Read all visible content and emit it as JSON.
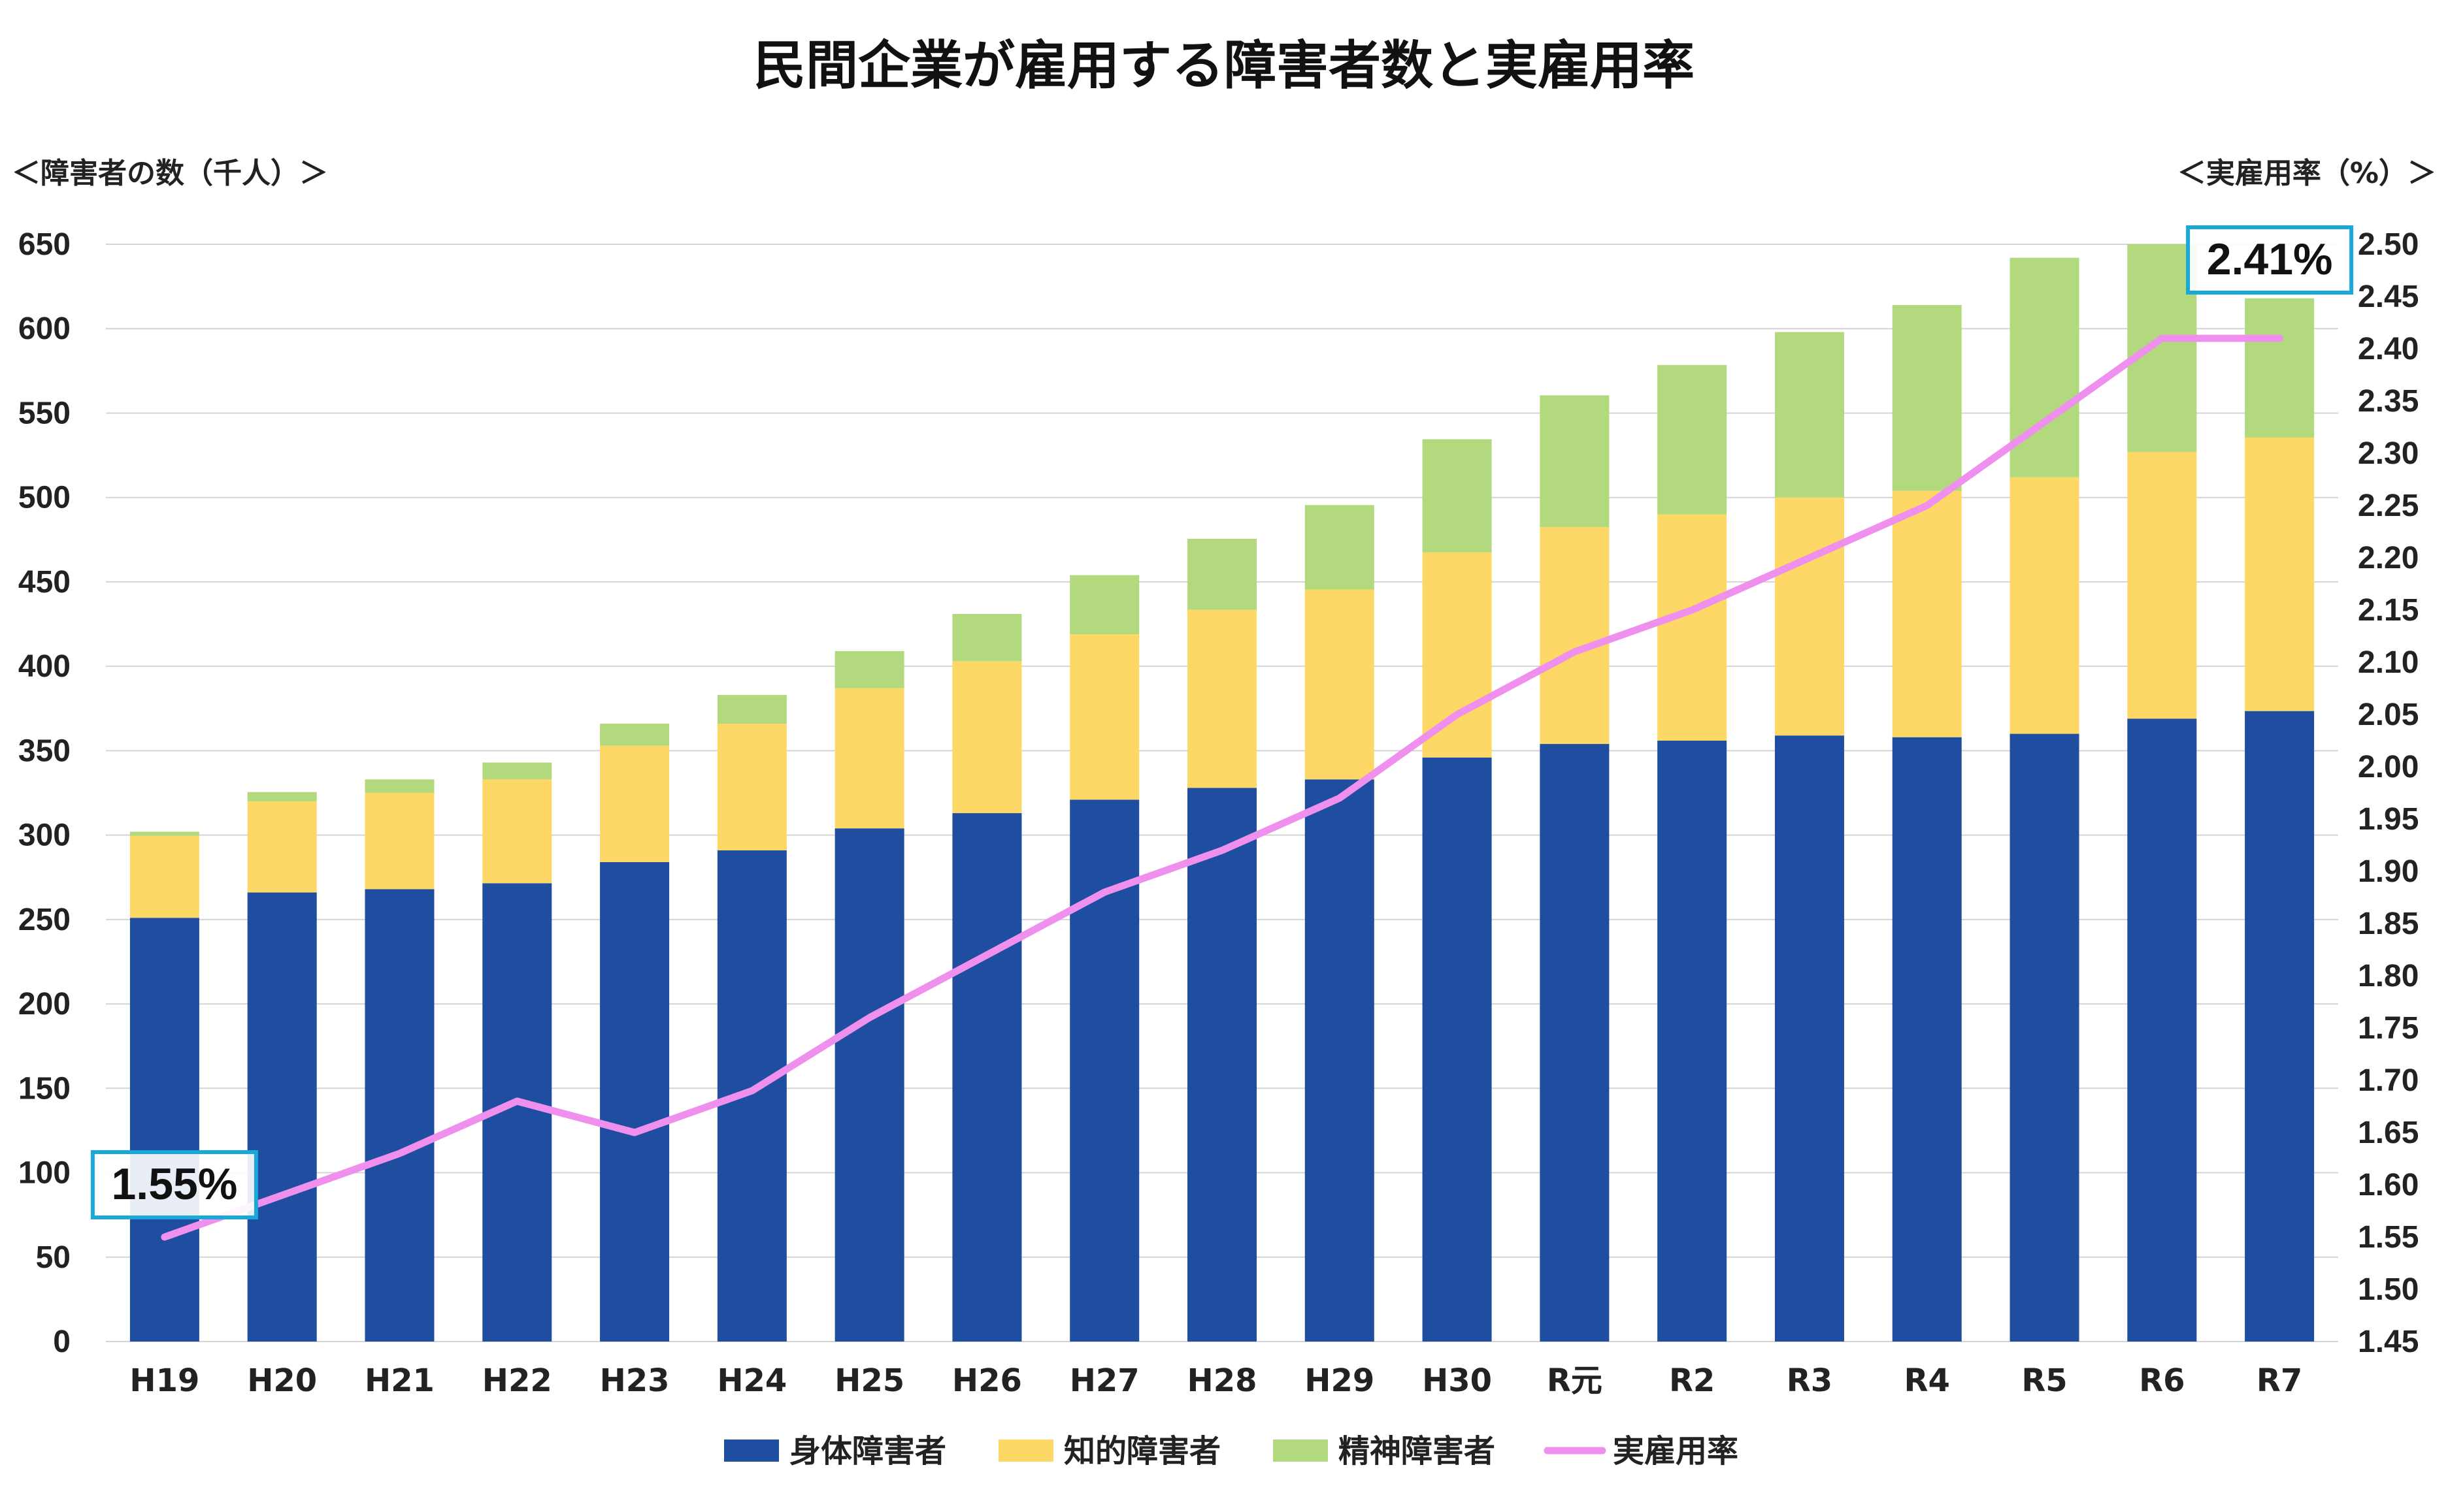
{
  "chart_data": {
    "type": "bar",
    "stacked": true,
    "title": "民間企業が雇用する障害者数と実雇用率",
    "y_left_label": "＜障害者の数（千人）＞",
    "y_right_label": "＜実雇用率（%）＞",
    "categories": [
      "H19",
      "H20",
      "H21",
      "H22",
      "H23",
      "H24",
      "H25",
      "H26",
      "H27",
      "H28",
      "H29",
      "H30",
      "R元",
      "R2",
      "R3",
      "R4",
      "R5",
      "R6",
      "R7"
    ],
    "series": [
      {
        "name": "身体障害者",
        "kind": "bar",
        "color": "#1f4ea1",
        "values": [
          251.0,
          266.0,
          268.0,
          271.5,
          284.0,
          291.0,
          304.0,
          313.0,
          321.0,
          328.0,
          333.0,
          346.0,
          354.0,
          356.0,
          359.0,
          358.0,
          360.0,
          369.0,
          373.5
        ]
      },
      {
        "name": "知的障害者",
        "kind": "bar",
        "color": "#fdd866",
        "values": [
          48.5,
          54.0,
          57.0,
          61.5,
          69.0,
          75.0,
          83.0,
          90.0,
          98.0,
          105.5,
          112.5,
          121.5,
          128.5,
          134.0,
          141.0,
          146.0,
          152.0,
          158.0,
          162.0
        ]
      },
      {
        "name": "精神障害者",
        "kind": "bar",
        "color": "#b2d97e",
        "values": [
          2.5,
          5.5,
          8.0,
          10.0,
          13.0,
          17.0,
          22.0,
          28.0,
          35.0,
          42.0,
          50.0,
          67.0,
          78.0,
          88.5,
          98.0,
          110.0,
          130.0,
          123.0,
          82.5
        ]
      },
      {
        "name": "実雇用率",
        "kind": "line",
        "axis": "right",
        "color": "#f090ee",
        "values": [
          1.55,
          1.59,
          1.63,
          1.68,
          1.65,
          1.69,
          1.76,
          1.82,
          1.88,
          1.92,
          1.97,
          2.05,
          2.11,
          2.15,
          2.2,
          2.25,
          2.33,
          2.41,
          2.41
        ]
      }
    ],
    "y_left": {
      "min": 0,
      "max": 650,
      "step": 50
    },
    "y_right": {
      "min": 1.45,
      "max": 2.5,
      "step": 0.05
    },
    "grid": true,
    "legend_position": "bottom",
    "callouts": [
      {
        "text": "1.55%",
        "index": 0
      },
      {
        "text": "2.41%",
        "index": 18
      }
    ]
  }
}
